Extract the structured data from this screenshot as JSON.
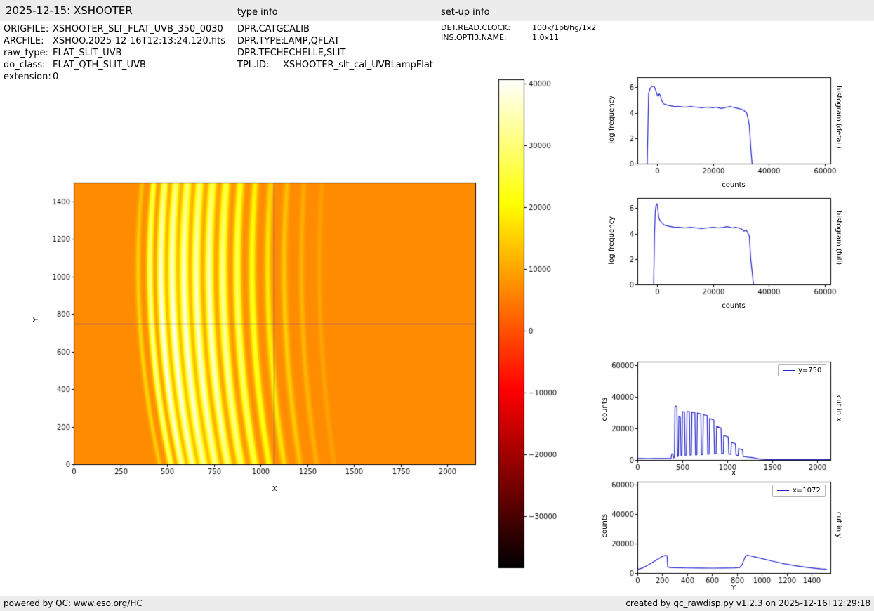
{
  "header": {
    "title": "2025-12-15: XSHOOTER",
    "type_info_label": "type info",
    "setup_info_label": "set-up info"
  },
  "metadata": {
    "col1": [
      {
        "label": "ORIGFILE:",
        "value": "XSHOOTER_SLT_FLAT_UVB_350_0030"
      },
      {
        "label": "ARCFILE:",
        "value": "XSHOO.2025-12-16T12:13:24.120.fits"
      },
      {
        "label": "raw_type:",
        "value": "FLAT_SLIT_UVB"
      },
      {
        "label": "do_class:",
        "value": "FLAT_QTH_SLIT_UVB"
      },
      {
        "label": "extension:",
        "value": "0"
      }
    ],
    "col2": [
      {
        "label": "DPR.CATG:",
        "value": "CALIB"
      },
      {
        "label": "DPR.TYPE:",
        "value": "LAMP,QFLAT"
      },
      {
        "label": "DPR.TECH:",
        "value": "ECHELLE,SLIT"
      },
      {
        "label": "TPL.ID:",
        "value": "XSHOOTER_slt_cal_UVBLampFlat"
      }
    ],
    "col3": [
      {
        "label": "DET.READ.CLOCK:",
        "value": "100k/1pt/hg/1x2"
      },
      {
        "label": "INS.OPTI3.NAME:",
        "value": "1.0x11"
      }
    ]
  },
  "footer": {
    "left": "powered by QC: www.eso.org/HC",
    "right": "created by qc_rawdisp.py v1.2.3 on 2025-12-16T12:29:18"
  },
  "colors": {
    "plot_line": "#2222cc",
    "bar_bg": "#ececec"
  },
  "chart_data": [
    {
      "id": "raw_frame",
      "type": "heatmap",
      "description": "Raw UVB lamp flat frame: curved bright echelle orders on orange background, blue crosshair at x=1072 / y=750",
      "xlabel": "X",
      "ylabel": "Y",
      "xlim": [
        0,
        2150
      ],
      "ylim": [
        0,
        1500
      ],
      "xticks": [
        0,
        250,
        500,
        750,
        1000,
        1250,
        1500,
        1750,
        2000
      ],
      "yticks": [
        0,
        200,
        400,
        600,
        800,
        1000,
        1200,
        1400
      ],
      "colormap": "hot",
      "vmin": -38300,
      "vmax": 40700,
      "background_value": 7000,
      "crosshair": {
        "x": 1072,
        "y": 750,
        "color": "#2222cc"
      },
      "orders": [
        {
          "x0": 345,
          "curv": 115,
          "width": 9,
          "amp": 9000
        },
        {
          "x0": 408,
          "curv": 112,
          "width": 11,
          "amp": 26000
        },
        {
          "x0": 467,
          "curv": 110,
          "width": 13,
          "amp": 33000
        },
        {
          "x0": 527,
          "curv": 108,
          "width": 14,
          "amp": 33000
        },
        {
          "x0": 590,
          "curv": 105,
          "width": 15,
          "amp": 32000
        },
        {
          "x0": 656,
          "curv": 102,
          "width": 15,
          "amp": 31000
        },
        {
          "x0": 725,
          "curv": 100,
          "width": 15,
          "amp": 30000
        },
        {
          "x0": 798,
          "curv": 97,
          "width": 15,
          "amp": 27000
        },
        {
          "x0": 875,
          "curv": 94,
          "width": 14,
          "amp": 23000
        },
        {
          "x0": 955,
          "curv": 91,
          "width": 13,
          "amp": 17000
        },
        {
          "x0": 1039,
          "curv": 88,
          "width": 12,
          "amp": 12000
        },
        {
          "x0": 1127,
          "curv": 85,
          "width": 11,
          "amp": 8000
        },
        {
          "x0": 1219,
          "curv": 82,
          "width": 10,
          "amp": 5000
        },
        {
          "x0": 1315,
          "curv": 80,
          "width": 9,
          "amp": 3000
        }
      ]
    },
    {
      "id": "colorbar",
      "type": "colorbar",
      "colormap": "hot",
      "vmin": -38300,
      "vmax": 40700,
      "ticks": [
        40000,
        30000,
        20000,
        10000,
        0,
        -10000,
        -20000,
        -30000
      ]
    },
    {
      "id": "hist_detail",
      "type": "line",
      "right_label": "histogram (detail)",
      "xlabel": "counts",
      "ylabel": "log frequency",
      "xlim": [
        -7000,
        62000
      ],
      "ylim": [
        0,
        6.8
      ],
      "xticks": [
        0,
        20000,
        40000,
        60000
      ],
      "yticks": [
        0,
        2,
        4,
        6
      ],
      "color": "#2222cc",
      "x": [
        -3500,
        -3000,
        -2500,
        -2000,
        -1500,
        -1000,
        -500,
        0,
        400,
        800,
        1200,
        1600,
        2000,
        2500,
        3000,
        4000,
        5000,
        6000,
        8000,
        10000,
        12000,
        14000,
        16000,
        18000,
        20000,
        21000,
        22000,
        23000,
        24000,
        25000,
        26000,
        27000,
        28000,
        29000,
        30000,
        31000,
        32000,
        32500,
        33000,
        33300,
        33600,
        34000
      ],
      "y": [
        0,
        5.5,
        5.9,
        6.05,
        6.1,
        6.05,
        5.8,
        5.45,
        5.3,
        5.5,
        5.35,
        5.0,
        4.85,
        4.7,
        4.65,
        4.6,
        4.55,
        4.5,
        4.5,
        4.45,
        4.5,
        4.45,
        4.4,
        4.45,
        4.4,
        4.45,
        4.4,
        4.35,
        4.4,
        4.45,
        4.5,
        4.45,
        4.4,
        4.35,
        4.3,
        4.2,
        4.0,
        3.6,
        3.0,
        2.0,
        1.0,
        0
      ]
    },
    {
      "id": "hist_full",
      "type": "line",
      "right_label": "histogram (full)",
      "xlabel": "counts",
      "ylabel": "log frequency",
      "xlim": [
        -7000,
        62000
      ],
      "ylim": [
        0,
        6.8
      ],
      "xticks": [
        0,
        20000,
        40000,
        60000
      ],
      "yticks": [
        0,
        2,
        4,
        6
      ],
      "color": "#2222cc",
      "x": [
        -1200,
        -900,
        -600,
        -300,
        0,
        300,
        600,
        1000,
        1500,
        2000,
        2500,
        3000,
        4000,
        5000,
        6000,
        8000,
        10000,
        12000,
        14000,
        16000,
        18000,
        20000,
        22000,
        24000,
        25000,
        26000,
        27000,
        28000,
        29000,
        30000,
        31000,
        32000,
        33000,
        33500,
        34000,
        34500
      ],
      "y": [
        0,
        4.0,
        5.8,
        6.3,
        6.35,
        5.9,
        5.3,
        5.05,
        4.9,
        4.8,
        4.7,
        4.65,
        4.6,
        4.55,
        4.5,
        4.5,
        4.45,
        4.5,
        4.45,
        4.4,
        4.45,
        4.5,
        4.45,
        4.5,
        4.55,
        4.5,
        4.45,
        4.5,
        4.45,
        4.4,
        4.2,
        4.25,
        3.8,
        2.0,
        1.0,
        0
      ]
    },
    {
      "id": "cut_x",
      "type": "line",
      "legend": "y=750",
      "right_label": "cut in x",
      "xlabel": "X",
      "ylabel": "counts",
      "xlim": [
        0,
        2150
      ],
      "ylim": [
        0,
        62000
      ],
      "xticks": [
        0,
        500,
        1000,
        1500,
        2000
      ],
      "yticks": [
        0,
        20000,
        40000,
        60000
      ],
      "color": "#2222cc",
      "x": [
        0,
        60,
        120,
        180,
        240,
        300,
        360,
        375,
        382,
        394,
        402,
        412,
        418,
        428,
        440,
        446,
        456,
        462,
        478,
        486,
        496,
        502,
        524,
        531,
        546,
        552,
        579,
        586,
        601,
        607,
        640,
        647,
        662,
        668,
        706,
        713,
        728,
        734,
        776,
        783,
        798,
        804,
        851,
        858,
        876,
        882,
        931,
        938,
        956,
        962,
        1011,
        1018,
        1041,
        1047,
        1091,
        1098,
        1121,
        1127,
        1171,
        1178,
        1200,
        1240,
        1280,
        1320,
        1360,
        1400,
        1450,
        1550,
        1700,
        1900,
        2150
      ],
      "y": [
        900,
        950,
        880,
        950,
        900,
        950,
        1000,
        1100,
        3800,
        3900,
        1400,
        1600,
        33500,
        34000,
        33200,
        2200,
        2400,
        27500,
        27000,
        2800,
        3000,
        30500,
        30300,
        3000,
        3100,
        30600,
        30400,
        3100,
        3200,
        30200,
        29800,
        3200,
        3300,
        29600,
        29000,
        3300,
        3400,
        28600,
        28000,
        3600,
        3700,
        26200,
        25200,
        3900,
        4000,
        21200,
        20200,
        3900,
        3900,
        15500,
        14500,
        3700,
        3600,
        11200,
        10200,
        3100,
        2700,
        7200,
        6300,
        2100,
        2000,
        1700,
        1500,
        1100,
        600,
        350,
        250,
        220,
        200,
        200,
        200
      ]
    },
    {
      "id": "cut_y",
      "type": "line",
      "legend": "x=1072",
      "right_label": "cut in y",
      "xlabel": "Y",
      "ylabel": "counts",
      "xlim": [
        0,
        1550
      ],
      "ylim": [
        0,
        62000
      ],
      "xticks": [
        0,
        200,
        400,
        600,
        800,
        1000,
        1200,
        1400
      ],
      "yticks": [
        0,
        20000,
        40000,
        60000
      ],
      "color": "#2222cc",
      "x": [
        0,
        40,
        80,
        120,
        160,
        200,
        225,
        238,
        243,
        260,
        300,
        400,
        500,
        600,
        700,
        780,
        820,
        840,
        855,
        868,
        882,
        900,
        950,
        1000,
        1060,
        1120,
        1180,
        1240,
        1300,
        1360,
        1420,
        1480,
        1520
      ],
      "y": [
        2400,
        3400,
        5200,
        7200,
        9300,
        11300,
        12000,
        11800,
        4200,
        3800,
        3600,
        3450,
        3380,
        3350,
        3400,
        3500,
        3700,
        5500,
        9000,
        11500,
        12100,
        11800,
        10800,
        9800,
        8600,
        7400,
        6300,
        5400,
        4600,
        3900,
        3300,
        2800,
        2600
      ]
    }
  ]
}
